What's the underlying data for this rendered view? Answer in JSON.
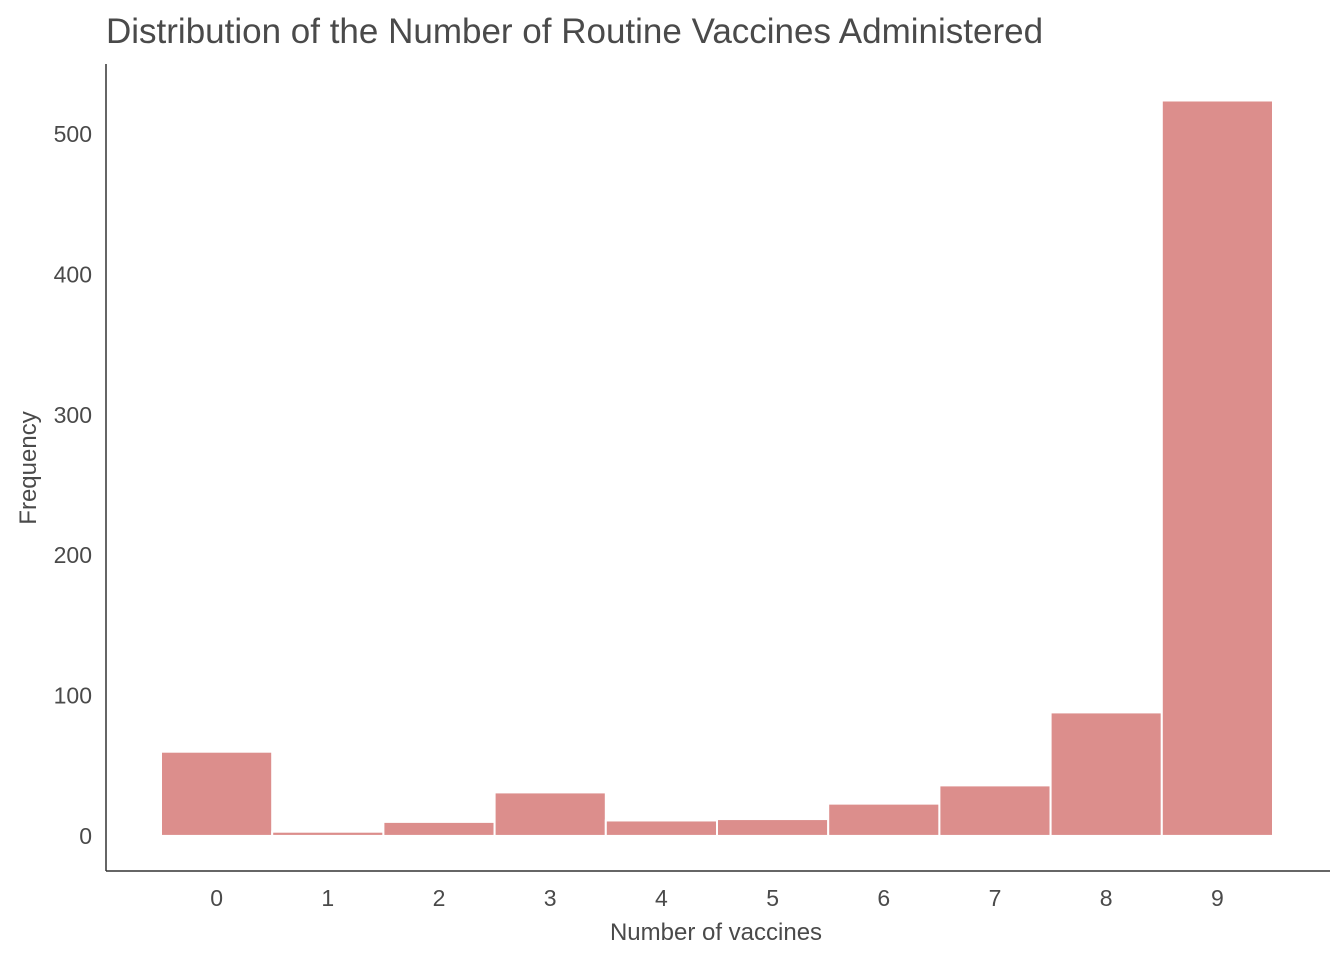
{
  "chart_data": {
    "type": "bar",
    "title": "Distribution of the Number of Routine Vaccines Administered",
    "xlabel": "Number of vaccines",
    "ylabel": "Frequency",
    "categories": [
      "0",
      "1",
      "2",
      "3",
      "4",
      "5",
      "6",
      "7",
      "8",
      "9"
    ],
    "values": [
      60,
      3,
      10,
      31,
      11,
      12,
      23,
      36,
      88,
      524
    ],
    "yticks": [
      "0",
      "100",
      "200",
      "300",
      "400",
      "500"
    ],
    "ylim": [
      -25,
      550
    ],
    "grid": false,
    "legend": "none",
    "bar_color": "#dc8e8c",
    "bar_edge_color": "#ffffff",
    "text_color": "#4a4a4a",
    "axis_color": "#333333"
  }
}
